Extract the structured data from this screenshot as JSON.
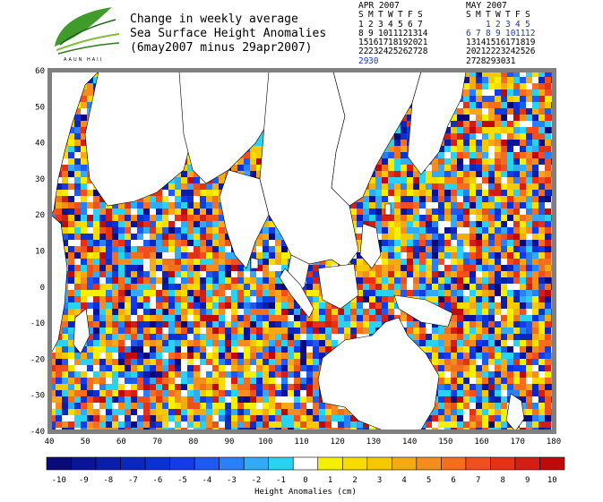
{
  "header": {
    "logo_text": "AAUN HAII",
    "title_lines": [
      "Change in weekly average",
      "Sea Surface Height Anomalies",
      "(6may2007 minus 29apr2007)"
    ]
  },
  "calendars": [
    {
      "month_label": "APR 2007",
      "weekdays": [
        "S",
        "M",
        "T",
        "W",
        "T",
        "F",
        "S"
      ],
      "weeks": [
        [
          "1",
          "2",
          "3",
          "4",
          "5",
          "6",
          "7"
        ],
        [
          "8",
          "9",
          "10",
          "11",
          "12",
          "13",
          "14"
        ],
        [
          "15",
          "16",
          "17",
          "18",
          "19",
          "20",
          "21"
        ],
        [
          "22",
          "23",
          "24",
          "25",
          "26",
          "27",
          "28"
        ],
        [
          "29",
          "30",
          "",
          "",
          "",
          "",
          ""
        ]
      ],
      "highlighted_days": [
        "29",
        "30"
      ]
    },
    {
      "month_label": "MAY 2007",
      "weekdays": [
        "S",
        "M",
        "T",
        "W",
        "T",
        "F",
        "S"
      ],
      "weeks": [
        [
          "",
          "",
          "1",
          "2",
          "3",
          "4",
          "5"
        ],
        [
          "6",
          "7",
          "8",
          "9",
          "10",
          "11",
          "12"
        ],
        [
          "13",
          "14",
          "15",
          "16",
          "17",
          "18",
          "19"
        ],
        [
          "20",
          "21",
          "22",
          "23",
          "24",
          "25",
          "26"
        ],
        [
          "27",
          "28",
          "29",
          "30",
          "31",
          "",
          ""
        ]
      ],
      "highlighted_days": [
        "1",
        "2",
        "3",
        "4",
        "5",
        "6",
        "7",
        "8",
        "9",
        "10",
        "11",
        "12"
      ]
    }
  ],
  "map": {
    "lon_range": [
      40,
      180
    ],
    "lat_range": [
      -40,
      60
    ],
    "lon_ticks": [
      "40",
      "50",
      "60",
      "70",
      "80",
      "90",
      "100",
      "110",
      "120",
      "130",
      "140",
      "150",
      "160",
      "170",
      "180"
    ],
    "lat_ticks": [
      "60",
      "50",
      "40",
      "30",
      "20",
      "10",
      "0",
      "-10",
      "-20",
      "-30",
      "-40"
    ],
    "frame_color": "#808080",
    "land_color": "#ffffff"
  },
  "colorbar": {
    "label": "Height Anomalies (cm)",
    "ticks": [
      "-10",
      "-9",
      "-8",
      "-7",
      "-6",
      "-5",
      "-4",
      "-3",
      "-2",
      "-1",
      "0",
      "1",
      "2",
      "3",
      "4",
      "5",
      "6",
      "7",
      "8",
      "9",
      "10"
    ],
    "colors": [
      "#0a0a78",
      "#0a1496",
      "#0a1eaa",
      "#0a28be",
      "#0a32d2",
      "#143ce6",
      "#1e5af0",
      "#2882f5",
      "#32aaf8",
      "#28d2f0",
      "#ffffff",
      "#f5f000",
      "#f8dc00",
      "#f5c800",
      "#f5aa14",
      "#f58c1e",
      "#f56e1e",
      "#f0501e",
      "#e63214",
      "#d21e14",
      "#be0a0a"
    ]
  }
}
